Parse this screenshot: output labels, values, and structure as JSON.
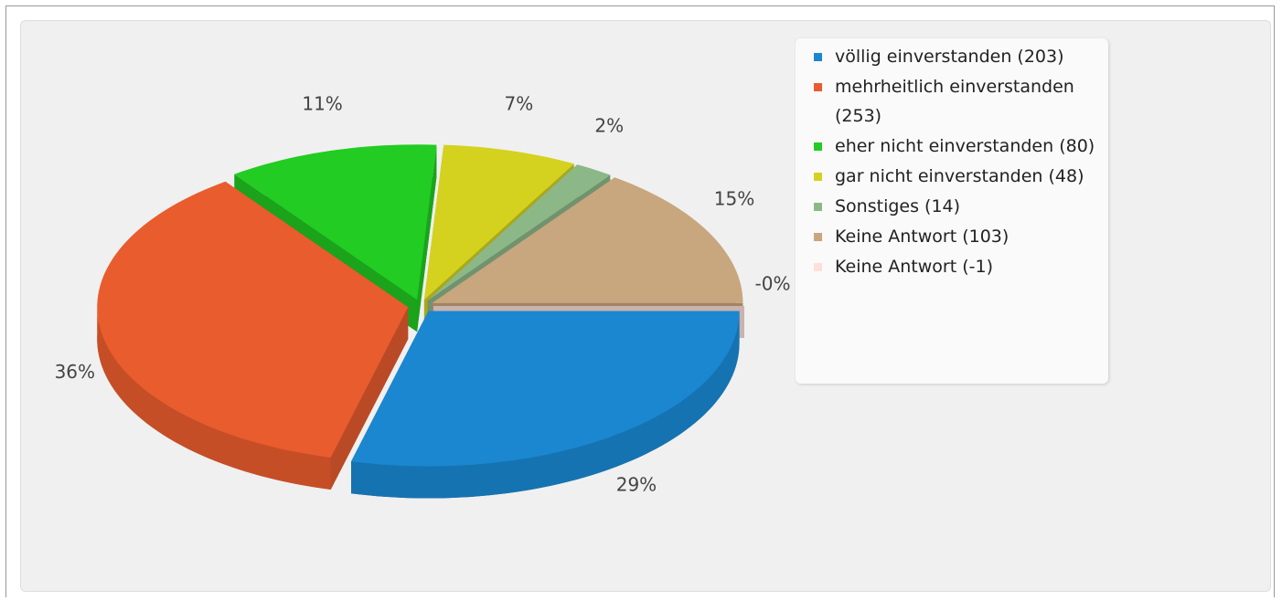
{
  "chart_data": {
    "type": "pie3d",
    "categories": [
      "völlig einverstanden (203)",
      "mehrheitlich einverstanden (253)",
      "eher nicht einverstanden (80)",
      "gar nicht einverstanden (48)",
      "Sonstiges (14)",
      "Keine Antwort (103)",
      "Keine Antwort (-1)"
    ],
    "values": [
      29,
      36,
      11,
      7,
      2,
      15,
      0
    ],
    "value_labels": [
      "29%",
      "36%",
      "11%",
      "7%",
      "2%",
      "15%",
      "-0%"
    ],
    "colors": [
      "#1a87d0",
      "#e85c2e",
      "#22cc22",
      "#d4d21f",
      "#8cb888",
      "#c8a67e",
      "#fde0d8"
    ],
    "legend": "top-right"
  }
}
